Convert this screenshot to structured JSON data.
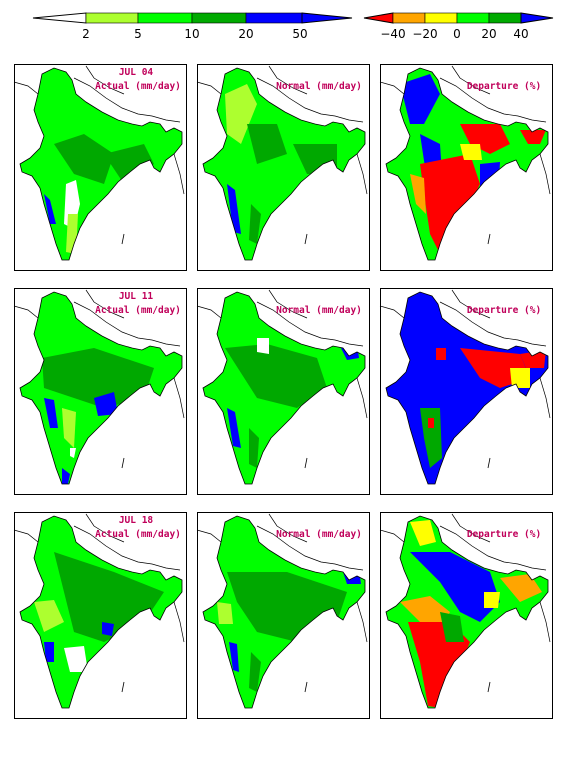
{
  "colorbars": {
    "rainfall": {
      "colors": [
        "#ffffff",
        "#adff2f",
        "#00ff00",
        "#00b000",
        "#009900",
        "#0000ff"
      ],
      "ticks": [
        "2",
        "5",
        "10",
        "20",
        "50"
      ]
    },
    "departure": {
      "colors": [
        "#ff0000",
        "#ffa500",
        "#ffff00",
        "#00ff00",
        "#00aa00",
        "#0000ff"
      ],
      "ticks": [
        "−40",
        "−20",
        "0",
        "20",
        "40"
      ]
    }
  },
  "weeks": [
    {
      "date": "JUL 04",
      "actual_label": "Actual (mm/day)",
      "normal_label": "Normal (mm/day)",
      "departure_label": "Departure (%)"
    },
    {
      "date": "JUL 11",
      "actual_label": "Actual (mm/day)",
      "normal_label": "Normal (mm/day)",
      "departure_label": "Departure (%)"
    },
    {
      "date": "JUL 18",
      "actual_label": "Actual (mm/day)",
      "normal_label": "Normal (mm/day)",
      "departure_label": "Departure (%)"
    }
  ],
  "map_colors": {
    "light_green": "#adff2f",
    "green": "#00ff00",
    "dark_green": "#00a800",
    "blue": "#0000ff",
    "red": "#ff0000",
    "orange": "#ffa500",
    "yellow": "#ffff00",
    "white": "#ffffff"
  }
}
